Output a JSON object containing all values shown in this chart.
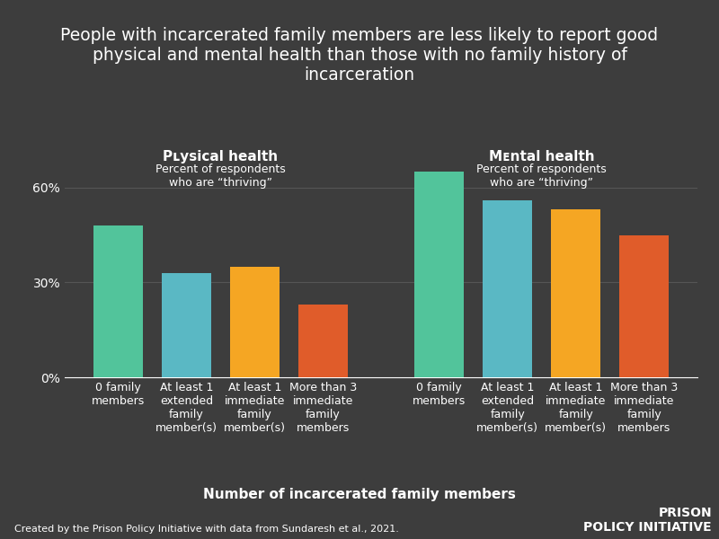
{
  "title": "People with incarcerated family members are less likely to report good\nphysical and mental health than those with no family history of\nincarceration",
  "physical_health_label": "Pʟysical health",
  "physical_health_sublabel": "Percent of respondents\nwho are “thriving”",
  "mental_health_label": "Mᴇntal health",
  "mental_health_sublabel": "Percent of respondents\nwho are “thriving”",
  "xlabel": "Nᴟmber of incarcerated family members",
  "footnote": "Created by the Prison Policy Initiative with data from Sundaresh et al., 2021.",
  "categories": [
    "0 family\nmembers",
    "At least 1\nextended\nfamily\nmember(s)",
    "At least 1\nimmediate\nfamily\nmember(s)",
    "More than 3\nimmediate\nfamily\nmembers",
    "0 family\nmembers",
    "At least 1\nextended\nfamily\nmember(s)",
    "At least 1\nimmediate\nfamily\nmember(s)",
    "More than 3\nimmediate\nfamily\nmembers"
  ],
  "values": [
    48,
    33,
    35,
    23,
    65,
    56,
    53,
    45
  ],
  "colors": [
    "#52c49b",
    "#5ab8c4",
    "#f5a623",
    "#e05c2a",
    "#52c49b",
    "#5ab8c4",
    "#f5a623",
    "#e05c2a"
  ],
  "background_color": "#3d3d3d",
  "text_color": "#ffffff",
  "grid_color": "#555555",
  "yticks": [
    0,
    30,
    60
  ],
  "ylim": [
    0,
    75
  ],
  "x_positions": [
    0,
    1,
    2,
    3,
    4.7,
    5.7,
    6.7,
    7.7
  ],
  "bar_width": 0.72,
  "title_fontsize": 13.5,
  "section_label_fontsize": 11,
  "sublabel_fontsize": 9,
  "tick_fontsize": 9,
  "xlabel_fontsize": 11,
  "footnote_fontsize": 8,
  "logo_fontsize": 10
}
